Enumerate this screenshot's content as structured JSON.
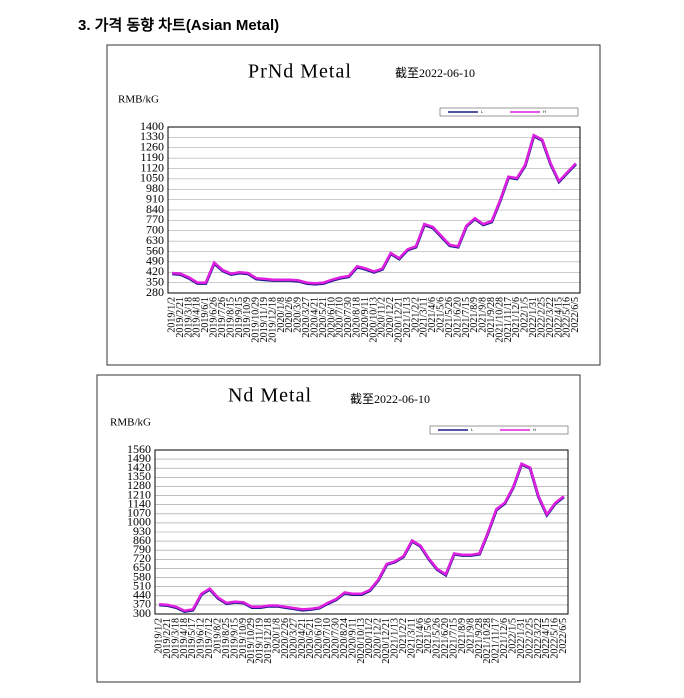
{
  "heading": "3. 가격 동향 차트(Asian Metal)",
  "chart_data": [
    {
      "type": "line",
      "title": "PrNd Metal",
      "subtitle": "截至2022-06-10",
      "y_label": "RMB/kG",
      "grid": true,
      "categories": [
        "2019/1/2",
        "2019/2/21",
        "2019/3/18",
        "2019/4/18",
        "2019/6/1",
        "2019/6/26",
        "2019/7/26",
        "2019/8/15",
        "2019/9/15",
        "2019/10/9",
        "2019/10/29",
        "2019/11/19",
        "2019/12/18",
        "2020/1/8",
        "2020/2/6",
        "2020/3/9",
        "2020/3/27",
        "2020/4/21",
        "2020/5/21",
        "2020/6/10",
        "2020/7/10",
        "2020/7/30",
        "2020/8/18",
        "2020/9/11",
        "2020/10/13",
        "2020/11/2",
        "2020/12/2",
        "2020/12/21",
        "2021/1/13",
        "2021/2/2",
        "2021/3/11",
        "2021/4/6",
        "2021/5/6",
        "2021/5/26",
        "2021/6/20",
        "2021/7/15",
        "2021/8/9",
        "2021/9/8",
        "2021/9/28",
        "2021/10/28",
        "2021/11/17",
        "2021/12/6",
        "2022/1/5",
        "2022/1/31",
        "2022/2/25",
        "2022/3/22",
        "2022/4/15",
        "2022/5/16",
        "2022/6/5"
      ],
      "series": [
        {
          "name": "L",
          "color": "#1a1a8c",
          "values": [
            410,
            405,
            380,
            345,
            345,
            480,
            430,
            405,
            415,
            410,
            375,
            370,
            365,
            365,
            365,
            360,
            345,
            340,
            345,
            365,
            380,
            390,
            455,
            440,
            420,
            440,
            545,
            510,
            570,
            590,
            740,
            720,
            660,
            600,
            590,
            730,
            780,
            740,
            760,
            900,
            1060,
            1050,
            1140,
            1340,
            1310,
            1150,
            1030,
            1090,
            1150
          ]
        },
        {
          "name": "H",
          "color": "#e020e0",
          "values": [
            415,
            410,
            385,
            350,
            350,
            485,
            435,
            410,
            420,
            415,
            380,
            375,
            370,
            370,
            370,
            365,
            350,
            345,
            350,
            370,
            385,
            395,
            460,
            445,
            425,
            445,
            550,
            515,
            575,
            595,
            745,
            725,
            665,
            605,
            595,
            735,
            785,
            745,
            765,
            905,
            1065,
            1055,
            1145,
            1345,
            1315,
            1155,
            1035,
            1095,
            1155
          ]
        }
      ],
      "ylim": [
        280,
        1400
      ],
      "yticks": [
        280,
        350,
        420,
        490,
        560,
        630,
        700,
        770,
        840,
        910,
        980,
        1050,
        1120,
        1190,
        1260,
        1330,
        1400
      ]
    },
    {
      "type": "line",
      "title": "Nd Metal",
      "subtitle": "截至2022-06-10",
      "y_label": "RMB/kG",
      "grid": true,
      "categories": [
        "2019/1/2",
        "2019/2/21",
        "2019/3/18",
        "2019/4/18",
        "2019/5/17",
        "2019/6/12",
        "2019/7/12",
        "2019/8/2",
        "2019/8/25",
        "2019/9/15",
        "2019/10/9",
        "2019/10/29",
        "2019/11/19",
        "2019/12/18",
        "2020/1/8",
        "2020/2/26",
        "2020/3/27",
        "2020/4/21",
        "2020/5/21",
        "2020/6/10",
        "2020/7/10",
        "2020/7/30",
        "2020/8/24",
        "2020/9/11",
        "2020/10/13",
        "2020/11/2",
        "2020/12/2",
        "2020/12/21",
        "2021/1/13",
        "2021/2/2",
        "2021/3/11",
        "2021/4/6",
        "2021/5/6",
        "2021/5/26",
        "2021/6/20",
        "2021/7/15",
        "2021/8/9",
        "2021/9/8",
        "2021/9/28",
        "2021/10/28",
        "2021/11/17",
        "2021/12/6",
        "2022/1/5",
        "2022/1/31",
        "2022/2/25",
        "2022/3/22",
        "2022/4/15",
        "2022/5/16",
        "2022/6/5"
      ],
      "series": [
        {
          "name": "L",
          "color": "#1a1a8c",
          "values": [
            370,
            365,
            350,
            320,
            330,
            450,
            490,
            420,
            380,
            390,
            385,
            350,
            350,
            360,
            360,
            350,
            340,
            330,
            335,
            345,
            380,
            410,
            460,
            450,
            450,
            480,
            560,
            680,
            700,
            740,
            860,
            820,
            720,
            640,
            600,
            760,
            750,
            750,
            760,
            920,
            1100,
            1150,
            1270,
            1450,
            1420,
            1200,
            1060,
            1150,
            1200
          ]
        },
        {
          "name": "H",
          "color": "#e020e0",
          "values": [
            375,
            370,
            355,
            325,
            335,
            455,
            495,
            425,
            385,
            395,
            390,
            355,
            355,
            365,
            365,
            355,
            345,
            335,
            340,
            350,
            385,
            415,
            465,
            455,
            455,
            485,
            565,
            685,
            705,
            745,
            865,
            825,
            725,
            645,
            605,
            765,
            755,
            755,
            765,
            925,
            1105,
            1155,
            1275,
            1455,
            1425,
            1205,
            1065,
            1155,
            1205
          ]
        }
      ],
      "ylim": [
        300,
        1560
      ],
      "yticks": [
        300,
        370,
        440,
        510,
        580,
        650,
        720,
        790,
        860,
        930,
        1000,
        1070,
        1140,
        1210,
        1280,
        1350,
        1420,
        1490,
        1560
      ]
    }
  ]
}
